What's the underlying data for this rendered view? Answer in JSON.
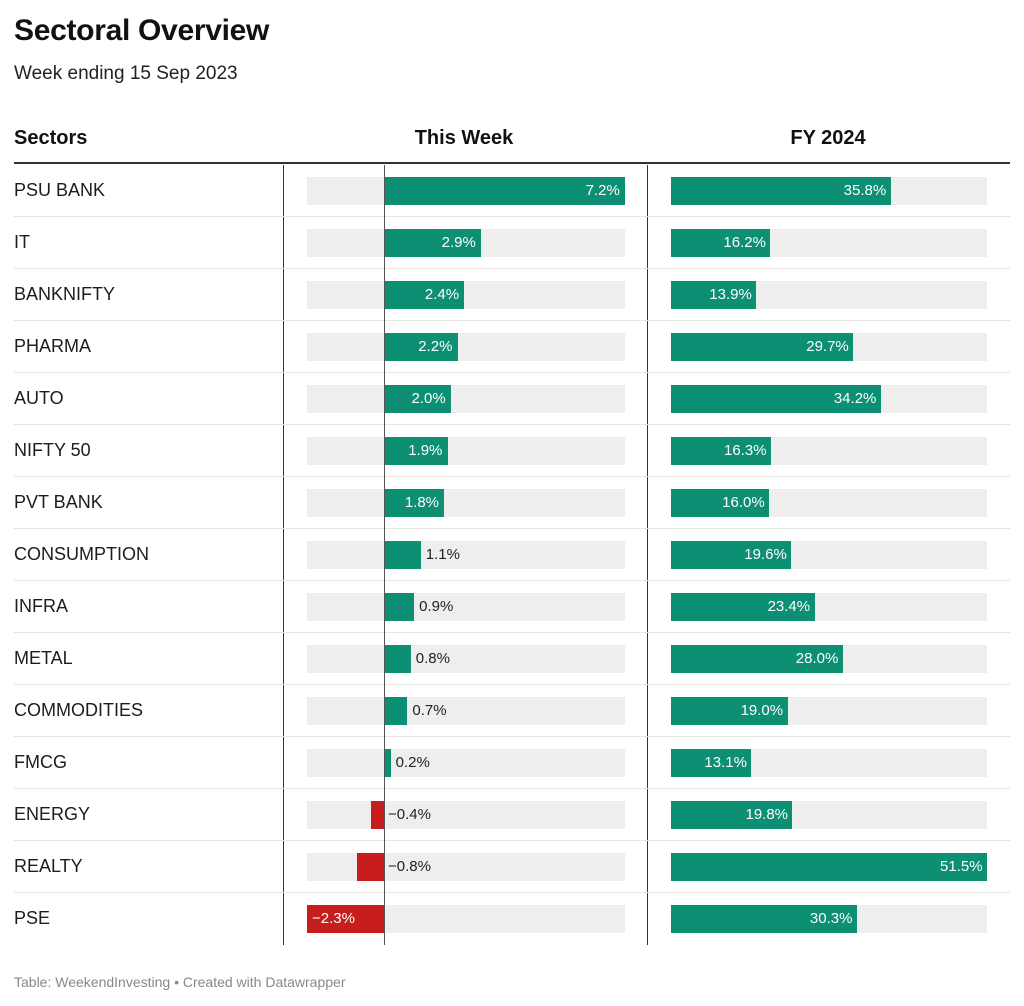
{
  "title": "Sectoral Overview",
  "subtitle": "Week ending 15 Sep 2023",
  "headers": {
    "sectors": "Sectors",
    "this_week": "This Week",
    "fy": "FY 2024"
  },
  "footer": "Table: WeekendInvesting • Created with Datawrapper",
  "colors": {
    "positive": "#0c8f73",
    "negative": "#c71e1d",
    "track": "#eeeeee"
  },
  "chart_data": {
    "type": "table",
    "title": "Sectoral Overview",
    "subtitle": "Week ending 15 Sep 2023",
    "columns": [
      "Sectors",
      "This Week",
      "FY 2024"
    ],
    "rows": [
      {
        "sector": "PSU BANK",
        "this_week": 7.2,
        "this_week_label": "7.2%",
        "fy": 35.8,
        "fy_label": "35.8%"
      },
      {
        "sector": "IT",
        "this_week": 2.9,
        "this_week_label": "2.9%",
        "fy": 16.2,
        "fy_label": "16.2%"
      },
      {
        "sector": "BANKNIFTY",
        "this_week": 2.4,
        "this_week_label": "2.4%",
        "fy": 13.9,
        "fy_label": "13.9%"
      },
      {
        "sector": "PHARMA",
        "this_week": 2.2,
        "this_week_label": "2.2%",
        "fy": 29.7,
        "fy_label": "29.7%"
      },
      {
        "sector": "AUTO",
        "this_week": 2.0,
        "this_week_label": "2.0%",
        "fy": 34.2,
        "fy_label": "34.2%"
      },
      {
        "sector": "NIFTY 50",
        "this_week": 1.9,
        "this_week_label": "1.9%",
        "fy": 16.3,
        "fy_label": "16.3%"
      },
      {
        "sector": "PVT BANK",
        "this_week": 1.8,
        "this_week_label": "1.8%",
        "fy": 16.0,
        "fy_label": "16.0%"
      },
      {
        "sector": "CONSUMPTION",
        "this_week": 1.1,
        "this_week_label": "1.1%",
        "fy": 19.6,
        "fy_label": "19.6%"
      },
      {
        "sector": "INFRA",
        "this_week": 0.9,
        "this_week_label": "0.9%",
        "fy": 23.4,
        "fy_label": "23.4%"
      },
      {
        "sector": "METAL",
        "this_week": 0.8,
        "this_week_label": "0.8%",
        "fy": 28.0,
        "fy_label": "28.0%"
      },
      {
        "sector": "COMMODITIES",
        "this_week": 0.7,
        "this_week_label": "0.7%",
        "fy": 19.0,
        "fy_label": "19.0%"
      },
      {
        "sector": "FMCG",
        "this_week": 0.2,
        "this_week_label": "0.2%",
        "fy": 13.1,
        "fy_label": "13.1%"
      },
      {
        "sector": "ENERGY",
        "this_week": -0.4,
        "this_week_label": "−0.4%",
        "fy": 19.8,
        "fy_label": "19.8%"
      },
      {
        "sector": "REALTY",
        "this_week": -0.8,
        "this_week_label": "−0.8%",
        "fy": 51.5,
        "fy_label": "51.5%"
      },
      {
        "sector": "PSE",
        "this_week": -2.3,
        "this_week_label": "−2.3%",
        "fy": 30.3,
        "fy_label": "30.3%"
      }
    ],
    "this_week_range": [
      -2.3,
      7.2
    ],
    "fy_range": [
      0,
      51.5
    ]
  }
}
